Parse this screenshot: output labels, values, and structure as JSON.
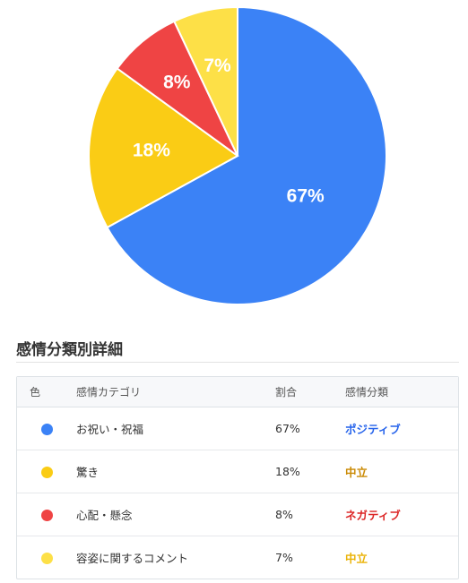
{
  "chart_data": {
    "type": "pie",
    "categories": [
      "お祝い・祝福",
      "驚き",
      "心配・懸念",
      "容姿に関するコメント"
    ],
    "values": [
      67,
      18,
      8,
      7
    ],
    "labels": [
      "67%",
      "18%",
      "8%",
      "7%"
    ],
    "colors": [
      "#3b82f6",
      "#facc15",
      "#ef4444",
      "#fde047"
    ]
  },
  "section": {
    "title": "感情分類別詳細"
  },
  "table": {
    "headers": {
      "color": "色",
      "category": "感情カテゴリ",
      "ratio": "割合",
      "classification": "感情分類"
    },
    "rows": [
      {
        "color": "#3b82f6",
        "category": "お祝い・祝福",
        "ratio": "67%",
        "classification": "ポジティブ",
        "class_color": "#2563eb"
      },
      {
        "color": "#facc15",
        "category": "驚き",
        "ratio": "18%",
        "classification": "中立",
        "class_color": "#ca8a04"
      },
      {
        "color": "#ef4444",
        "category": "心配・懸念",
        "ratio": "8%",
        "classification": "ネガティブ",
        "class_color": "#dc2626"
      },
      {
        "color": "#fde047",
        "category": "容姿に関するコメント",
        "ratio": "7%",
        "classification": "中立",
        "class_color": "#eab308"
      }
    ]
  }
}
